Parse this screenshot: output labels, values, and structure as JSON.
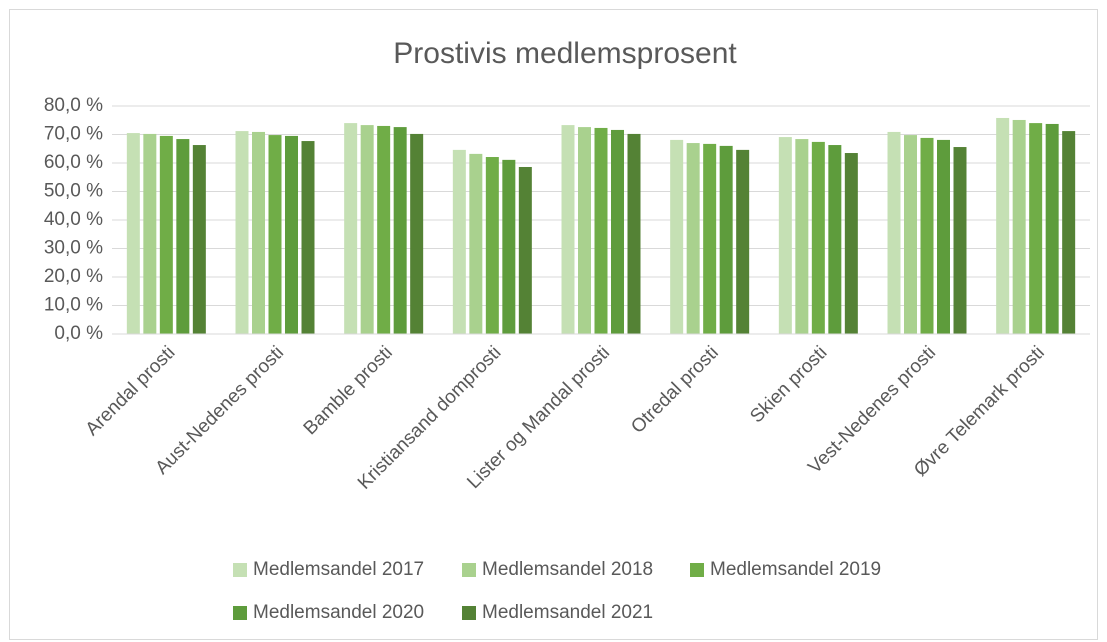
{
  "chart_data": {
    "type": "bar",
    "title": "Prostivis medlemsprosent",
    "categories": [
      "Arendal prosti",
      "Aust-Nedenes prosti",
      "Bamble prosti",
      "Kristiansand domprosti",
      "Lister og Mandal prosti",
      "Otredal prosti",
      "Skien prosti",
      "Vest-Nedenes prosti",
      "Øvre Telemark prosti"
    ],
    "series": [
      {
        "name": "Medlemsandel 2017",
        "color": "#c5e0b4",
        "values": [
          70.5,
          71.2,
          74.0,
          64.6,
          73.3,
          68.1,
          69.1,
          70.9,
          75.8
        ]
      },
      {
        "name": "Medlemsandel 2018",
        "color": "#a9d18e",
        "values": [
          70.2,
          70.9,
          73.3,
          63.2,
          72.6,
          67.0,
          68.4,
          69.8,
          75.1
        ]
      },
      {
        "name": "Medlemsandel 2019",
        "color": "#70ad47",
        "values": [
          69.5,
          69.8,
          73.0,
          62.1,
          72.3,
          66.7,
          67.4,
          68.8,
          74.0
        ]
      },
      {
        "name": "Medlemsandel 2020",
        "color": "#5e9c3c",
        "values": [
          68.4,
          69.5,
          72.6,
          61.1,
          71.6,
          66.0,
          66.3,
          68.1,
          73.7
        ]
      },
      {
        "name": "Medlemsandel 2021",
        "color": "#548235",
        "values": [
          66.3,
          67.7,
          70.2,
          58.6,
          70.2,
          64.6,
          63.5,
          65.6,
          71.2
        ]
      }
    ],
    "ylim": [
      0,
      80
    ],
    "yticks": [
      {
        "value": 0,
        "label": "0,0 %"
      },
      {
        "value": 10,
        "label": "10,0 %"
      },
      {
        "value": 20,
        "label": "20,0 %"
      },
      {
        "value": 30,
        "label": "30,0 %"
      },
      {
        "value": 40,
        "label": "40,0 %"
      },
      {
        "value": 50,
        "label": "50,0 %"
      },
      {
        "value": 60,
        "label": "60,0 %"
      },
      {
        "value": 70,
        "label": "70,0 %"
      },
      {
        "value": 80,
        "label": "80,0 %"
      }
    ],
    "grid": true,
    "legend": "bottom"
  }
}
